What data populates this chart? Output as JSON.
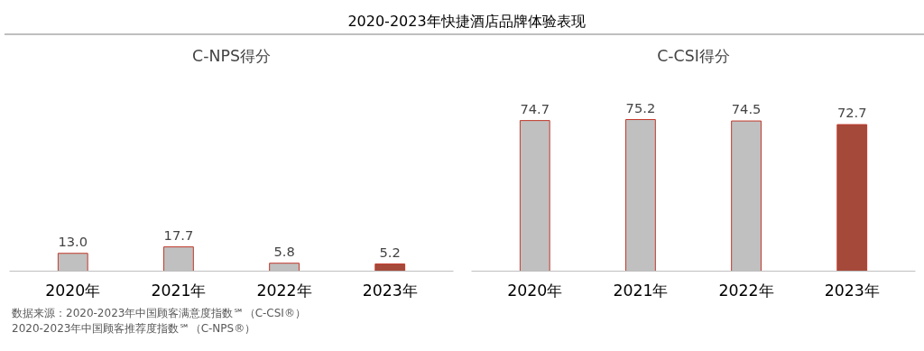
{
  "chart_data": [
    {
      "type": "bar",
      "title": "2020-2023年快捷酒店品牌体验表现",
      "subtitle": "C-NPS得分",
      "categories": [
        "2020年",
        "2021年",
        "2022年",
        "2023年"
      ],
      "values": [
        13.0,
        17.7,
        5.8,
        5.2
      ],
      "colors": [
        "#c0c0c0",
        "#c0c0c0",
        "#c0c0c0",
        "#a5493a"
      ],
      "value_labels": [
        "13.0",
        "17.7",
        "5.8",
        "5.2"
      ],
      "annotations": [
        "数据来源：2020-2023年中国顾客满意度指数℠（C-CSI®）",
        "2020-2023年中国顾客推荐度指数℠（C-NPS®）"
      ]
    },
    {
      "type": "bar",
      "subtitle": "C-CSI得分",
      "categories": [
        "2020年",
        "2021年",
        "2022年",
        "2023年"
      ],
      "values": [
        74.7,
        75.2,
        74.5,
        72.7
      ],
      "colors": [
        "#c0c0c0",
        "#c0c0c0",
        "#c0c0c0",
        "#a5493a"
      ],
      "value_labels": [
        "74.7",
        "75.2",
        "74.5",
        "72.7"
      ]
    }
  ]
}
